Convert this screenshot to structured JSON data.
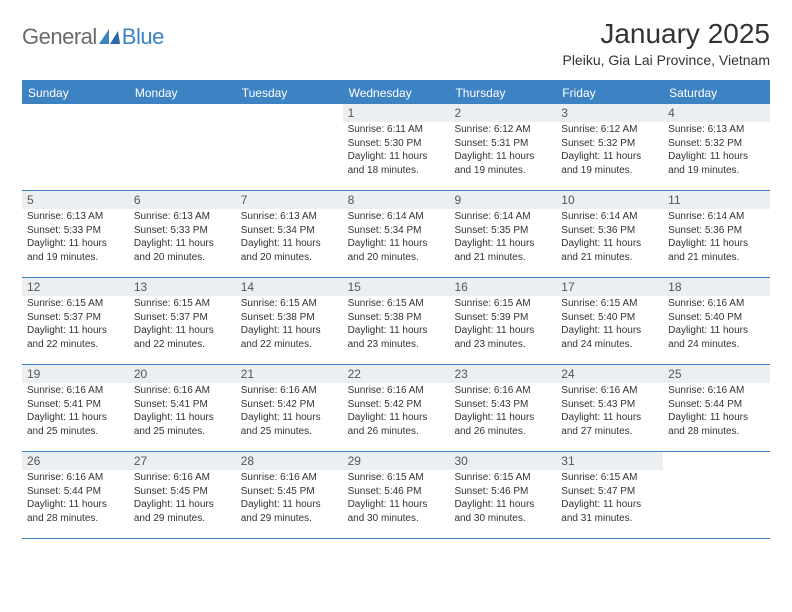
{
  "logo": {
    "general": "General",
    "blue": "Blue"
  },
  "month_title": "January 2025",
  "location": "Pleiku, Gia Lai Province, Vietnam",
  "colors": {
    "accent": "#3d83c4",
    "header_text": "#ffffff",
    "daynum_bg": "#eceff1",
    "text": "#333333",
    "logo_gray": "#6a6a6a"
  },
  "day_headers": [
    "Sunday",
    "Monday",
    "Tuesday",
    "Wednesday",
    "Thursday",
    "Friday",
    "Saturday"
  ],
  "weeks": [
    [
      null,
      null,
      null,
      {
        "n": "1",
        "r": "6:11 AM",
        "s": "5:30 PM",
        "d": "11 hours and 18 minutes."
      },
      {
        "n": "2",
        "r": "6:12 AM",
        "s": "5:31 PM",
        "d": "11 hours and 19 minutes."
      },
      {
        "n": "3",
        "r": "6:12 AM",
        "s": "5:32 PM",
        "d": "11 hours and 19 minutes."
      },
      {
        "n": "4",
        "r": "6:13 AM",
        "s": "5:32 PM",
        "d": "11 hours and 19 minutes."
      }
    ],
    [
      {
        "n": "5",
        "r": "6:13 AM",
        "s": "5:33 PM",
        "d": "11 hours and 19 minutes."
      },
      {
        "n": "6",
        "r": "6:13 AM",
        "s": "5:33 PM",
        "d": "11 hours and 20 minutes."
      },
      {
        "n": "7",
        "r": "6:13 AM",
        "s": "5:34 PM",
        "d": "11 hours and 20 minutes."
      },
      {
        "n": "8",
        "r": "6:14 AM",
        "s": "5:34 PM",
        "d": "11 hours and 20 minutes."
      },
      {
        "n": "9",
        "r": "6:14 AM",
        "s": "5:35 PM",
        "d": "11 hours and 21 minutes."
      },
      {
        "n": "10",
        "r": "6:14 AM",
        "s": "5:36 PM",
        "d": "11 hours and 21 minutes."
      },
      {
        "n": "11",
        "r": "6:14 AM",
        "s": "5:36 PM",
        "d": "11 hours and 21 minutes."
      }
    ],
    [
      {
        "n": "12",
        "r": "6:15 AM",
        "s": "5:37 PM",
        "d": "11 hours and 22 minutes."
      },
      {
        "n": "13",
        "r": "6:15 AM",
        "s": "5:37 PM",
        "d": "11 hours and 22 minutes."
      },
      {
        "n": "14",
        "r": "6:15 AM",
        "s": "5:38 PM",
        "d": "11 hours and 22 minutes."
      },
      {
        "n": "15",
        "r": "6:15 AM",
        "s": "5:38 PM",
        "d": "11 hours and 23 minutes."
      },
      {
        "n": "16",
        "r": "6:15 AM",
        "s": "5:39 PM",
        "d": "11 hours and 23 minutes."
      },
      {
        "n": "17",
        "r": "6:15 AM",
        "s": "5:40 PM",
        "d": "11 hours and 24 minutes."
      },
      {
        "n": "18",
        "r": "6:16 AM",
        "s": "5:40 PM",
        "d": "11 hours and 24 minutes."
      }
    ],
    [
      {
        "n": "19",
        "r": "6:16 AM",
        "s": "5:41 PM",
        "d": "11 hours and 25 minutes."
      },
      {
        "n": "20",
        "r": "6:16 AM",
        "s": "5:41 PM",
        "d": "11 hours and 25 minutes."
      },
      {
        "n": "21",
        "r": "6:16 AM",
        "s": "5:42 PM",
        "d": "11 hours and 25 minutes."
      },
      {
        "n": "22",
        "r": "6:16 AM",
        "s": "5:42 PM",
        "d": "11 hours and 26 minutes."
      },
      {
        "n": "23",
        "r": "6:16 AM",
        "s": "5:43 PM",
        "d": "11 hours and 26 minutes."
      },
      {
        "n": "24",
        "r": "6:16 AM",
        "s": "5:43 PM",
        "d": "11 hours and 27 minutes."
      },
      {
        "n": "25",
        "r": "6:16 AM",
        "s": "5:44 PM",
        "d": "11 hours and 28 minutes."
      }
    ],
    [
      {
        "n": "26",
        "r": "6:16 AM",
        "s": "5:44 PM",
        "d": "11 hours and 28 minutes."
      },
      {
        "n": "27",
        "r": "6:16 AM",
        "s": "5:45 PM",
        "d": "11 hours and 29 minutes."
      },
      {
        "n": "28",
        "r": "6:16 AM",
        "s": "5:45 PM",
        "d": "11 hours and 29 minutes."
      },
      {
        "n": "29",
        "r": "6:15 AM",
        "s": "5:46 PM",
        "d": "11 hours and 30 minutes."
      },
      {
        "n": "30",
        "r": "6:15 AM",
        "s": "5:46 PM",
        "d": "11 hours and 30 minutes."
      },
      {
        "n": "31",
        "r": "6:15 AM",
        "s": "5:47 PM",
        "d": "11 hours and 31 minutes."
      },
      null
    ]
  ],
  "labels": {
    "sunrise": "Sunrise:",
    "sunset": "Sunset:",
    "daylight": "Daylight:"
  }
}
